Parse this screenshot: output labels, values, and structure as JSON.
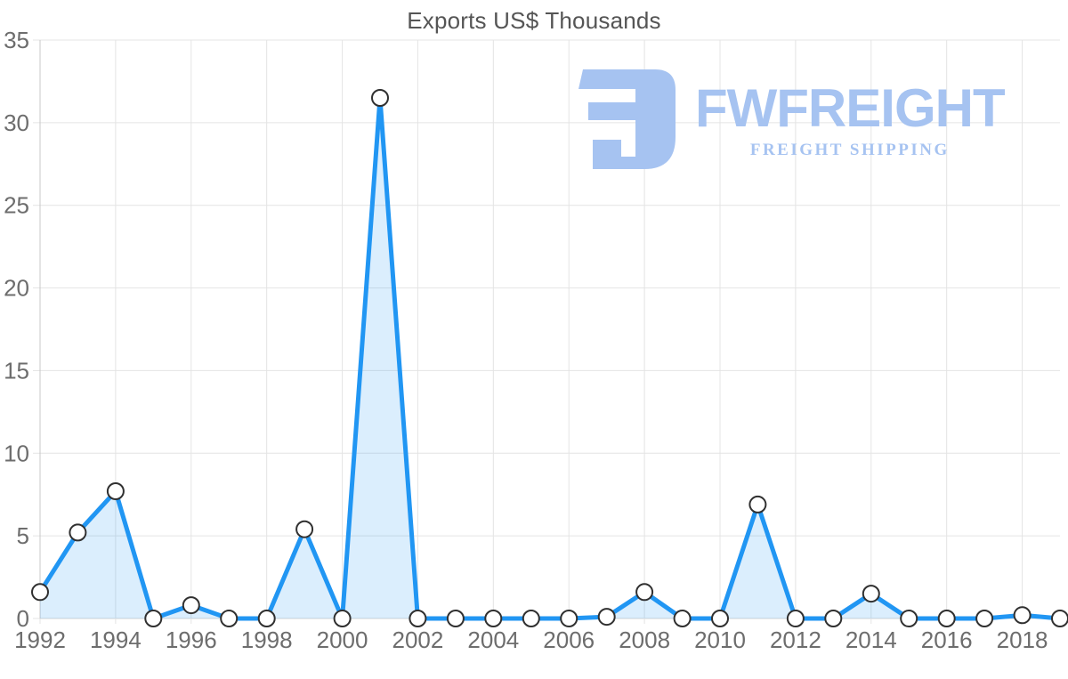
{
  "chart_data": {
    "type": "area",
    "title": "Exports US$ Thousands",
    "xlabel": "",
    "ylabel": "",
    "x": [
      1992,
      1993,
      1994,
      1995,
      1996,
      1997,
      1998,
      1999,
      2000,
      2001,
      2002,
      2003,
      2004,
      2005,
      2006,
      2007,
      2008,
      2009,
      2010,
      2011,
      2012,
      2013,
      2014,
      2015,
      2016,
      2017,
      2018,
      2019
    ],
    "series": [
      {
        "name": "Exports US$ Thousands",
        "values": [
          1.6,
          5.2,
          7.7,
          0,
          0.8,
          0,
          0,
          5.4,
          0,
          31.5,
          0,
          0,
          0,
          0,
          0,
          0.1,
          1.6,
          0,
          0,
          6.9,
          0,
          0,
          1.5,
          0,
          0,
          0,
          0.2,
          0
        ]
      }
    ],
    "ylim": [
      0,
      35
    ],
    "y_ticks": [
      0,
      5,
      10,
      15,
      20,
      25,
      30,
      35
    ],
    "x_ticks": [
      1992,
      1994,
      1996,
      1998,
      2000,
      2002,
      2004,
      2006,
      2008,
      2010,
      2012,
      2014,
      2016,
      2018
    ],
    "x_tick_labels": [
      "1992",
      "1994",
      "1996",
      "1998",
      "2000",
      "2002",
      "2004",
      "2006",
      "2008",
      "2010",
      "2012",
      "2014",
      "2016",
      "2018"
    ],
    "grid": true,
    "legend_position": "none",
    "marker": "circle",
    "colors": {
      "line": "#2196f3",
      "fill": "rgba(33,150,243,0.16)",
      "marker_fill": "#ffffff",
      "marker_stroke": "#303030",
      "grid": "#e4e4e4",
      "axis": "#c8c8c8",
      "tick_text": "#6d6d6d",
      "title_text": "#555555"
    }
  },
  "logo": {
    "brand": "FWFREIGHT",
    "tagline": "FREIGHT SHIPPING",
    "color": "#a6c3f1",
    "icon": "fwfreight-monogram-icon"
  }
}
